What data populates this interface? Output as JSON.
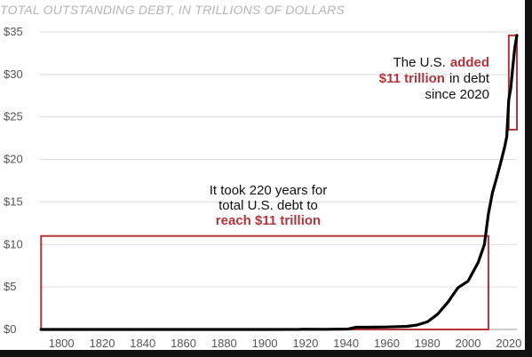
{
  "chart_data": {
    "type": "line",
    "title": "TOTAL OUTSTANDING DEBT, IN TRILLIONS OF DOLLARS",
    "xlabel": "",
    "ylabel": "",
    "xlim": [
      1789,
      2024
    ],
    "ylim": [
      0,
      35
    ],
    "x_ticks": [
      1800,
      1820,
      1840,
      1860,
      1880,
      1900,
      1920,
      1940,
      1960,
      1980,
      2000,
      2020
    ],
    "y_ticks": [
      {
        "value": 0,
        "label": "$0"
      },
      {
        "value": 5,
        "label": "$5"
      },
      {
        "value": 10,
        "label": "$10"
      },
      {
        "value": 15,
        "label": "$15"
      },
      {
        "value": 20,
        "label": "$20"
      },
      {
        "value": 25,
        "label": "$25"
      },
      {
        "value": 30,
        "label": "$30"
      },
      {
        "value": 35,
        "label": "$35"
      }
    ],
    "grid": "horizontal",
    "line_color": "#000000",
    "accent_color": "#b4343c",
    "series": [
      {
        "x": [
          1790,
          1800,
          1850,
          1900,
          1917,
          1919,
          1930,
          1941,
          1945,
          1950,
          1960,
          1970,
          1975,
          1980,
          1985,
          1990,
          1995,
          2000,
          2005,
          2008,
          2010,
          2012,
          2014,
          2016,
          2018,
          2019,
          2020,
          2021,
          2022,
          2023,
          2024
        ],
        "y": [
          0,
          0,
          0,
          0,
          0.01,
          0.03,
          0.02,
          0.05,
          0.26,
          0.26,
          0.29,
          0.37,
          0.53,
          0.9,
          1.8,
          3.2,
          4.9,
          5.7,
          7.9,
          10.0,
          13.6,
          16.1,
          17.8,
          19.6,
          21.5,
          22.7,
          27.0,
          28.4,
          30.9,
          33.2,
          34.6
        ]
      }
    ],
    "annotations": {
      "left": {
        "line1": "It took 220 years for",
        "line2": "total U.S. debt to",
        "line3_emphasis": "reach $11 trillion",
        "box_x": [
          1790,
          2010
        ],
        "box_y": [
          0,
          11
        ]
      },
      "right": {
        "line1_prefix": "The U.S.",
        "line1_emphasis": "added",
        "line2_emphasis": "$11 trillion",
        "line2_suffix": "in debt",
        "line3": "since 2020",
        "box_x": [
          2020,
          2024
        ],
        "box_y": [
          23.5,
          34.6
        ]
      }
    }
  }
}
